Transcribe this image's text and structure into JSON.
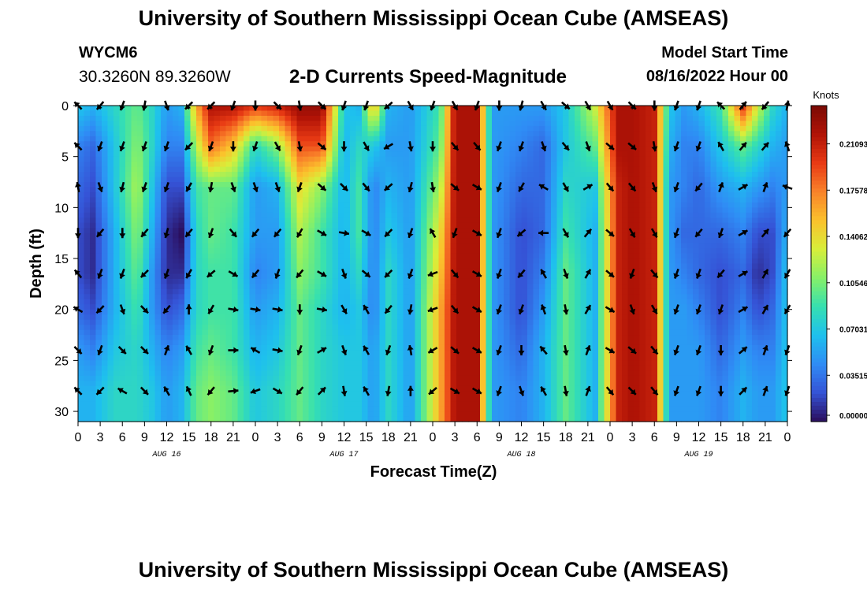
{
  "header": {
    "title": "University of Southern Mississippi Ocean Cube (AMSEAS)",
    "station": "WYCM6",
    "coords": "30.3260N  89.3260W",
    "subtitle": "2-D Currents Speed-Magnitude",
    "model_start_label": "Model Start Time",
    "model_start_value": "08/16/2022 Hour 00"
  },
  "footer": {
    "title": "University of Southern Mississippi Ocean Cube (AMSEAS)"
  },
  "chart_data": {
    "type": "heatmap",
    "xlabel": "Forecast Time(Z)",
    "ylabel": "Depth (ft)",
    "xlim": [
      0,
      96
    ],
    "ylim": [
      31,
      0
    ],
    "x_ticks": [
      0,
      3,
      6,
      9,
      12,
      15,
      18,
      21,
      24,
      27,
      30,
      33,
      36,
      39,
      42,
      45,
      48,
      51,
      54,
      57,
      60,
      63,
      66,
      69,
      72,
      75,
      78,
      81,
      84,
      87,
      90,
      93,
      96
    ],
    "x_tick_labels": [
      "0",
      "3",
      "6",
      "9",
      "12",
      "15",
      "18",
      "21",
      "0",
      "3",
      "6",
      "9",
      "12",
      "15",
      "18",
      "21",
      "0",
      "3",
      "6",
      "9",
      "12",
      "15",
      "18",
      "21",
      "0",
      "3",
      "6",
      "9",
      "12",
      "15",
      "18",
      "21",
      "0"
    ],
    "y_ticks": [
      0,
      5,
      10,
      15,
      20,
      25,
      30
    ],
    "y_tick_labels": [
      "0",
      "5",
      "10",
      "15",
      "20",
      "25",
      "30"
    ],
    "day_labels": [
      {
        "hour": 12,
        "text": "AUG 16"
      },
      {
        "hour": 36,
        "text": "AUG 17"
      },
      {
        "hour": 60,
        "text": "AUG 18"
      },
      {
        "hour": 84,
        "text": "AUG 19"
      }
    ],
    "colorbar": {
      "label": "Knots",
      "min": 0.0,
      "max": 0.24,
      "tick_values": [
        0.0,
        0.03515,
        0.07031,
        0.10546,
        0.14062,
        0.17578,
        0.21093
      ],
      "tick_labels": [
        "0.000000",
        "0.035156",
        "0.070312",
        "0.105469",
        "0.140625",
        "0.175781",
        "0.210937"
      ],
      "colors": [
        "#2a0d5c",
        "#3553d6",
        "#2f8cf5",
        "#1ec0ee",
        "#36e0b0",
        "#86f068",
        "#d8ee3a",
        "#fbc12c",
        "#f9822a",
        "#e83a14",
        "#b01306",
        "#7a0a05"
      ]
    },
    "vector_depths": [
      0,
      4,
      8,
      12.5,
      16.5,
      20,
      24,
      28
    ],
    "column_profiles": [
      {
        "hour": 0,
        "speeds": [
          0.07,
          0.04,
          0.03,
          0.02,
          0.02,
          0.03,
          0.05,
          0.06
        ]
      },
      {
        "hour": 2,
        "speeds": [
          0.06,
          0.03,
          0.02,
          0.01,
          0.01,
          0.02,
          0.04,
          0.06
        ]
      },
      {
        "hour": 5,
        "speeds": [
          0.08,
          0.07,
          0.07,
          0.06,
          0.06,
          0.06,
          0.07,
          0.08
        ]
      },
      {
        "hour": 8,
        "speeds": [
          0.1,
          0.11,
          0.12,
          0.11,
          0.1,
          0.09,
          0.08,
          0.08
        ]
      },
      {
        "hour": 10,
        "speeds": [
          0.08,
          0.08,
          0.07,
          0.06,
          0.05,
          0.05,
          0.06,
          0.07
        ]
      },
      {
        "hour": 12,
        "speeds": [
          0.05,
          0.04,
          0.02,
          0.01,
          0.01,
          0.02,
          0.04,
          0.05
        ]
      },
      {
        "hour": 14,
        "speeds": [
          0.06,
          0.04,
          0.02,
          0.0,
          0.01,
          0.03,
          0.05,
          0.06
        ]
      },
      {
        "hour": 16,
        "speeds": [
          0.16,
          0.12,
          0.09,
          0.08,
          0.08,
          0.08,
          0.09,
          0.1
        ]
      },
      {
        "hour": 18,
        "speeds": [
          0.22,
          0.18,
          0.1,
          0.1,
          0.09,
          0.09,
          0.1,
          0.11
        ]
      },
      {
        "hour": 21,
        "speeds": [
          0.22,
          0.15,
          0.1,
          0.09,
          0.09,
          0.09,
          0.09,
          0.1
        ]
      },
      {
        "hour": 24,
        "speeds": [
          0.2,
          0.08,
          0.05,
          0.05,
          0.04,
          0.05,
          0.06,
          0.07
        ]
      },
      {
        "hour": 27,
        "speeds": [
          0.21,
          0.11,
          0.06,
          0.05,
          0.05,
          0.06,
          0.07,
          0.08
        ]
      },
      {
        "hour": 30,
        "speeds": [
          0.23,
          0.19,
          0.14,
          0.12,
          0.11,
          0.1,
          0.1,
          0.1
        ]
      },
      {
        "hour": 33,
        "speeds": [
          0.23,
          0.19,
          0.11,
          0.09,
          0.09,
          0.08,
          0.08,
          0.08
        ]
      },
      {
        "hour": 36,
        "speeds": [
          0.07,
          0.06,
          0.06,
          0.06,
          0.06,
          0.06,
          0.07,
          0.07
        ]
      },
      {
        "hour": 38,
        "speeds": [
          0.06,
          0.08,
          0.09,
          0.09,
          0.08,
          0.07,
          0.07,
          0.07
        ]
      },
      {
        "hour": 40,
        "speeds": [
          0.16,
          0.07,
          0.04,
          0.04,
          0.04,
          0.04,
          0.05,
          0.05
        ]
      },
      {
        "hour": 42,
        "speeds": [
          0.06,
          0.05,
          0.06,
          0.07,
          0.08,
          0.08,
          0.08,
          0.08
        ]
      },
      {
        "hour": 45,
        "speeds": [
          0.05,
          0.05,
          0.05,
          0.05,
          0.05,
          0.05,
          0.05,
          0.05
        ]
      },
      {
        "hour": 49,
        "speeds": [
          0.09,
          0.1,
          0.12,
          0.14,
          0.15,
          0.16,
          0.16,
          0.16
        ]
      },
      {
        "hour": 51,
        "speeds": [
          0.22,
          0.22,
          0.22,
          0.22,
          0.22,
          0.22,
          0.22,
          0.22
        ]
      },
      {
        "hour": 54,
        "speeds": [
          0.22,
          0.22,
          0.22,
          0.22,
          0.22,
          0.22,
          0.22,
          0.22
        ]
      },
      {
        "hour": 56,
        "speeds": [
          0.05,
          0.05,
          0.05,
          0.05,
          0.05,
          0.05,
          0.05,
          0.05
        ]
      },
      {
        "hour": 60,
        "speeds": [
          0.05,
          0.04,
          0.03,
          0.02,
          0.02,
          0.02,
          0.03,
          0.04
        ]
      },
      {
        "hour": 63,
        "speeds": [
          0.05,
          0.03,
          0.03,
          0.03,
          0.04,
          0.05,
          0.06,
          0.06
        ]
      },
      {
        "hour": 66,
        "speeds": [
          0.07,
          0.07,
          0.08,
          0.09,
          0.1,
          0.1,
          0.1,
          0.1
        ]
      },
      {
        "hour": 70,
        "speeds": [
          0.13,
          0.1,
          0.07,
          0.06,
          0.06,
          0.06,
          0.06,
          0.06
        ]
      },
      {
        "hour": 73,
        "speeds": [
          0.22,
          0.22,
          0.21,
          0.21,
          0.21,
          0.21,
          0.21,
          0.21
        ]
      },
      {
        "hour": 75,
        "speeds": [
          0.22,
          0.22,
          0.22,
          0.22,
          0.22,
          0.22,
          0.22,
          0.22
        ]
      },
      {
        "hour": 78,
        "speeds": [
          0.21,
          0.21,
          0.21,
          0.21,
          0.21,
          0.21,
          0.21,
          0.21
        ]
      },
      {
        "hour": 80,
        "speeds": [
          0.07,
          0.06,
          0.05,
          0.05,
          0.05,
          0.05,
          0.05,
          0.05
        ]
      },
      {
        "hour": 82,
        "speeds": [
          0.05,
          0.04,
          0.04,
          0.03,
          0.04,
          0.05,
          0.05,
          0.05
        ]
      },
      {
        "hour": 84,
        "speeds": [
          0.06,
          0.04,
          0.03,
          0.03,
          0.03,
          0.04,
          0.05,
          0.05
        ]
      },
      {
        "hour": 87,
        "speeds": [
          0.09,
          0.07,
          0.05,
          0.03,
          0.02,
          0.02,
          0.03,
          0.04
        ]
      },
      {
        "hour": 90,
        "speeds": [
          0.2,
          0.1,
          0.06,
          0.04,
          0.03,
          0.04,
          0.05,
          0.06
        ]
      },
      {
        "hour": 92,
        "speeds": [
          0.13,
          0.08,
          0.05,
          0.02,
          0.01,
          0.02,
          0.04,
          0.05
        ]
      },
      {
        "hour": 94,
        "speeds": [
          0.08,
          0.06,
          0.04,
          0.02,
          0.02,
          0.03,
          0.04,
          0.05
        ]
      },
      {
        "hour": 96,
        "speeds": [
          0.06,
          0.05,
          0.05,
          0.06,
          0.07,
          0.07,
          0.07,
          0.07
        ]
      }
    ],
    "vector_hours": [
      0,
      3,
      6,
      9,
      12,
      15,
      18,
      21,
      24,
      27,
      30,
      33,
      36,
      39,
      42,
      45,
      48,
      51,
      54,
      57,
      60,
      63,
      66,
      69,
      72,
      75,
      78,
      81,
      84,
      87,
      90,
      93,
      96
    ],
    "vector_directions_deg": [
      [
        315,
        315,
        350,
        180,
        320,
        300,
        135,
        315
      ],
      [
        220,
        200,
        160,
        220,
        200,
        225,
        200,
        225
      ],
      [
        200,
        200,
        195,
        180,
        200,
        160,
        135,
        300
      ],
      [
        190,
        200,
        200,
        220,
        225,
        135,
        135,
        135
      ],
      [
        160,
        200,
        200,
        195,
        200,
        220,
        20,
        330
      ],
      [
        225,
        225,
        210,
        220,
        210,
        0,
        330,
        335
      ],
      [
        225,
        200,
        190,
        200,
        230,
        210,
        200,
        220
      ],
      [
        200,
        180,
        160,
        140,
        120,
        100,
        90,
        85
      ],
      [
        180,
        200,
        160,
        220,
        220,
        100,
        300,
        250
      ],
      [
        135,
        150,
        160,
        220,
        200,
        100,
        100,
        120
      ],
      [
        170,
        170,
        200,
        210,
        220,
        180,
        200,
        220
      ],
      [
        135,
        130,
        130,
        120,
        120,
        100,
        60,
        45
      ],
      [
        200,
        180,
        135,
        100,
        160,
        150,
        160,
        170
      ],
      [
        200,
        150,
        140,
        120,
        130,
        330,
        330,
        330
      ],
      [
        230,
        240,
        230,
        225,
        225,
        220,
        200,
        190
      ],
      [
        150,
        170,
        195,
        200,
        200,
        190,
        350,
        0
      ],
      [
        200,
        180,
        170,
        330,
        250,
        250,
        240,
        230
      ],
      [
        150,
        140,
        130,
        200,
        140,
        140,
        130,
        120
      ],
      [
        200,
        140,
        120,
        120,
        120,
        120,
        120,
        120
      ],
      [
        180,
        200,
        200,
        200,
        200,
        200,
        200,
        200
      ],
      [
        195,
        200,
        210,
        230,
        220,
        200,
        180,
        160
      ],
      [
        150,
        160,
        300,
        270,
        330,
        340,
        320,
        330
      ],
      [
        130,
        140,
        150,
        150,
        160,
        170,
        170,
        170
      ],
      [
        150,
        160,
        60,
        40,
        30,
        30,
        20,
        20
      ],
      [
        150,
        130,
        140,
        130,
        130,
        120,
        120,
        140
      ],
      [
        135,
        130,
        140,
        150,
        200,
        160,
        130,
        135
      ],
      [
        180,
        170,
        160,
        150,
        140,
        150,
        140,
        140
      ],
      [
        200,
        200,
        200,
        200,
        200,
        200,
        200,
        200
      ],
      [
        200,
        200,
        220,
        220,
        200,
        200,
        200,
        200
      ],
      [
        315,
        330,
        20,
        200,
        220,
        200,
        180,
        180
      ],
      [
        40,
        40,
        60,
        60,
        60,
        60,
        50,
        45
      ],
      [
        220,
        40,
        20,
        40,
        30,
        30,
        20,
        20
      ],
      [
        10,
        340,
        290,
        220,
        210,
        210,
        200,
        200
      ]
    ]
  }
}
